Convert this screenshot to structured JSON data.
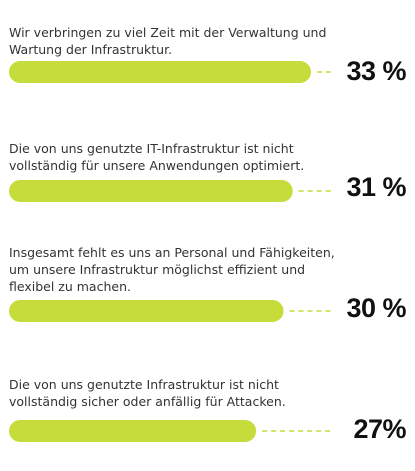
{
  "chart_data": {
    "type": "bar",
    "orientation": "horizontal",
    "categories": [
      "Wir verbringen zu viel Zeit mit der Verwaltung und Wartung der Infrastruktur.",
      "Die von uns genutzte IT-Infrastruktur ist nicht vollständig für unsere Anwendungen optimiert.",
      "Insgesamt fehlt es uns an Personal und Fähigkeiten, um unsere Infrastruktur möglichst effizient und flexibel zu machen.",
      "Die von uns genutzte Infrastruktur ist nicht vollständig sicher oder anfällig für Attacken."
    ],
    "values": [
      33,
      31,
      30,
      27
    ],
    "value_labels": [
      "33 %",
      "31 %",
      "30 %",
      "27%"
    ],
    "xlim": [
      0,
      33
    ],
    "grid": false,
    "legend": "none"
  },
  "colors": {
    "bar": "#c5dc3a",
    "leader": "#c5dc3a",
    "value_text": "#111111",
    "label_text": "#333333"
  }
}
